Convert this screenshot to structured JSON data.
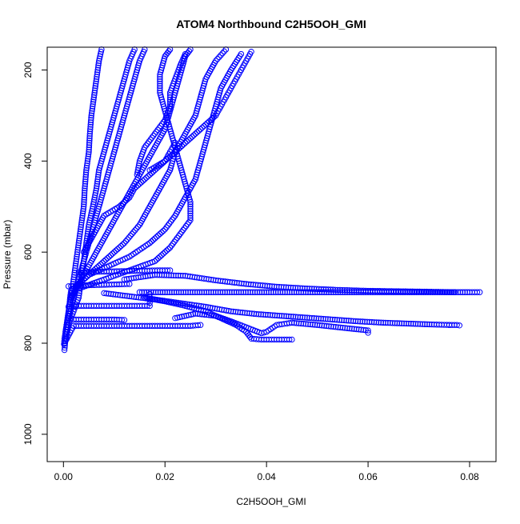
{
  "chart_data": {
    "type": "scatter",
    "title": "ATOM4 Northbound C2H5OOH_GMI",
    "xlabel": "C2H5OOH_GMI",
    "ylabel": "Pressure (mbar)",
    "xlim": [
      -0.0032,
      0.0852
    ],
    "ylim": [
      1060,
      150
    ],
    "y_reversed": true,
    "x_ticks": [
      0.0,
      0.02,
      0.04,
      0.06,
      0.08
    ],
    "x_tick_labels": [
      "0.00",
      "0.02",
      "0.04",
      "0.06",
      "0.08"
    ],
    "y_ticks": [
      200,
      400,
      600,
      800,
      1000
    ],
    "y_tick_labels": [
      "200",
      "400",
      "600",
      "800",
      "1000"
    ],
    "marker": "open-circle",
    "color": "#0000ff",
    "grid": false,
    "legend": "none",
    "series": [
      {
        "points": [
          [
            0.0002,
            815
          ],
          [
            0.0005,
            780
          ],
          [
            0.001,
            740
          ],
          [
            0.0015,
            700
          ],
          [
            0.002,
            660
          ],
          [
            0.0025,
            620
          ],
          [
            0.003,
            580
          ],
          [
            0.0035,
            540
          ],
          [
            0.004,
            500
          ],
          [
            0.0042,
            460
          ],
          [
            0.0045,
            420
          ],
          [
            0.005,
            380
          ],
          [
            0.0052,
            340
          ],
          [
            0.0055,
            300
          ],
          [
            0.006,
            260
          ],
          [
            0.0065,
            220
          ],
          [
            0.007,
            180
          ],
          [
            0.0075,
            155
          ]
        ]
      },
      {
        "points": [
          [
            0.0005,
            770
          ],
          [
            0.0012,
            740
          ],
          [
            0.002,
            700
          ],
          [
            0.003,
            660
          ],
          [
            0.004,
            620
          ],
          [
            0.005,
            580
          ],
          [
            0.006,
            540
          ],
          [
            0.007,
            500
          ],
          [
            0.008,
            460
          ],
          [
            0.009,
            420
          ],
          [
            0.01,
            380
          ],
          [
            0.011,
            340
          ],
          [
            0.012,
            300
          ],
          [
            0.013,
            260
          ],
          [
            0.014,
            220
          ],
          [
            0.015,
            180
          ],
          [
            0.016,
            155
          ]
        ]
      },
      {
        "points": [
          [
            0.001,
            720
          ],
          [
            0.002,
            690
          ],
          [
            0.004,
            650
          ],
          [
            0.006,
            610
          ],
          [
            0.008,
            570
          ],
          [
            0.01,
            530
          ],
          [
            0.012,
            490
          ],
          [
            0.014,
            450
          ],
          [
            0.016,
            410
          ],
          [
            0.018,
            370
          ],
          [
            0.02,
            330
          ],
          [
            0.021,
            290
          ],
          [
            0.022,
            250
          ],
          [
            0.023,
            210
          ],
          [
            0.024,
            170
          ],
          [
            0.025,
            155
          ]
        ]
      },
      {
        "points": [
          [
            0.0015,
            700
          ],
          [
            0.003,
            670
          ],
          [
            0.006,
            640
          ],
          [
            0.009,
            610
          ],
          [
            0.012,
            580
          ],
          [
            0.015,
            540
          ],
          [
            0.017,
            500
          ],
          [
            0.019,
            460
          ],
          [
            0.021,
            420
          ],
          [
            0.022,
            380
          ],
          [
            0.024,
            340
          ],
          [
            0.026,
            300
          ],
          [
            0.027,
            260
          ],
          [
            0.028,
            220
          ],
          [
            0.03,
            180
          ],
          [
            0.032,
            155
          ]
        ]
      },
      {
        "points": [
          [
            0.002,
            680
          ],
          [
            0.005,
            650
          ],
          [
            0.009,
            630
          ],
          [
            0.013,
            610
          ],
          [
            0.017,
            580
          ],
          [
            0.02,
            550
          ],
          [
            0.022,
            520
          ],
          [
            0.024,
            480
          ],
          [
            0.026,
            440
          ],
          [
            0.027,
            400
          ],
          [
            0.028,
            360
          ],
          [
            0.029,
            320
          ],
          [
            0.03,
            280
          ],
          [
            0.031,
            240
          ],
          [
            0.033,
            200
          ],
          [
            0.035,
            165
          ]
        ]
      },
      {
        "points": [
          [
            0.0005,
            790
          ],
          [
            0.001,
            760
          ],
          [
            0.002,
            730
          ],
          [
            0.003,
            700
          ],
          [
            0.0035,
            660
          ],
          [
            0.004,
            620
          ],
          [
            0.0045,
            580
          ],
          [
            0.005,
            540
          ],
          [
            0.0058,
            500
          ],
          [
            0.0065,
            460
          ],
          [
            0.007,
            420
          ],
          [
            0.008,
            380
          ],
          [
            0.009,
            340
          ],
          [
            0.01,
            300
          ],
          [
            0.011,
            260
          ],
          [
            0.012,
            220
          ],
          [
            0.013,
            180
          ],
          [
            0.014,
            155
          ]
        ]
      },
      {
        "points": [
          [
            0.003,
            680
          ],
          [
            0.008,
            660
          ],
          [
            0.013,
            640
          ],
          [
            0.018,
            620
          ],
          [
            0.021,
            590
          ],
          [
            0.023,
            560
          ],
          [
            0.025,
            530
          ],
          [
            0.025,
            490
          ],
          [
            0.024,
            450
          ],
          [
            0.023,
            410
          ],
          [
            0.022,
            370
          ],
          [
            0.021,
            330
          ],
          [
            0.02,
            290
          ],
          [
            0.019,
            250
          ],
          [
            0.019,
            210
          ],
          [
            0.02,
            170
          ],
          [
            0.021,
            155
          ]
        ]
      },
      {
        "points": [
          [
            0.0002,
            800
          ],
          [
            0.002,
            762
          ],
          [
            0.005,
            762
          ],
          [
            0.009,
            762
          ],
          [
            0.013,
            762
          ],
          [
            0.017,
            762
          ],
          [
            0.021,
            762
          ],
          [
            0.025,
            762
          ],
          [
            0.027,
            760
          ]
        ]
      },
      {
        "points": [
          [
            0.002,
            748
          ],
          [
            0.004,
            748
          ],
          [
            0.006,
            748
          ],
          [
            0.008,
            748
          ],
          [
            0.01,
            748
          ],
          [
            0.012,
            749
          ]
        ]
      },
      {
        "points": [
          [
            0.002,
            718
          ],
          [
            0.006,
            718
          ],
          [
            0.01,
            718
          ],
          [
            0.014,
            718
          ],
          [
            0.017,
            718
          ],
          [
            0.017,
            705
          ],
          [
            0.017,
            692
          ]
        ]
      },
      {
        "points": [
          [
            0.001,
            675
          ],
          [
            0.004,
            673
          ],
          [
            0.007,
            672
          ],
          [
            0.01,
            671
          ],
          [
            0.013,
            670
          ]
        ]
      },
      {
        "points": [
          [
            0.003,
            645
          ],
          [
            0.007,
            643
          ],
          [
            0.011,
            642
          ],
          [
            0.015,
            641
          ],
          [
            0.019,
            640
          ],
          [
            0.021,
            640
          ]
        ]
      },
      {
        "points": [
          [
            0.015,
            688
          ],
          [
            0.02,
            688
          ],
          [
            0.025,
            688
          ],
          [
            0.03,
            688
          ],
          [
            0.035,
            688
          ],
          [
            0.04,
            688
          ],
          [
            0.045,
            688
          ],
          [
            0.05,
            688
          ],
          [
            0.055,
            688
          ],
          [
            0.06,
            688
          ],
          [
            0.065,
            688
          ],
          [
            0.07,
            688
          ],
          [
            0.075,
            688
          ],
          [
            0.08,
            688
          ],
          [
            0.082,
            688
          ]
        ]
      },
      {
        "points": [
          [
            0.012,
            660
          ],
          [
            0.018,
            650
          ],
          [
            0.024,
            652
          ],
          [
            0.03,
            662
          ],
          [
            0.036,
            670
          ],
          [
            0.042,
            676
          ],
          [
            0.048,
            680
          ],
          [
            0.054,
            683
          ],
          [
            0.06,
            685
          ],
          [
            0.066,
            686
          ],
          [
            0.072,
            687
          ],
          [
            0.077,
            688
          ]
        ]
      },
      {
        "points": [
          [
            0.008,
            690
          ],
          [
            0.013,
            697
          ],
          [
            0.018,
            704
          ],
          [
            0.023,
            712
          ],
          [
            0.028,
            720
          ],
          [
            0.033,
            730
          ],
          [
            0.038,
            736
          ],
          [
            0.043,
            740
          ],
          [
            0.048,
            744
          ],
          [
            0.053,
            748
          ],
          [
            0.058,
            752
          ],
          [
            0.063,
            755
          ],
          [
            0.068,
            757
          ],
          [
            0.073,
            759
          ],
          [
            0.076,
            760
          ]
        ]
      },
      {
        "points": [
          [
            0.076,
            760
          ],
          [
            0.0765,
            760
          ],
          [
            0.077,
            760
          ],
          [
            0.0775,
            760
          ],
          [
            0.078,
            761
          ]
        ]
      },
      {
        "points": [
          [
            0.022,
            745
          ],
          [
            0.026,
            735
          ],
          [
            0.03,
            740
          ],
          [
            0.033,
            752
          ],
          [
            0.036,
            765
          ],
          [
            0.039,
            778
          ],
          [
            0.04,
            775
          ],
          [
            0.042,
            760
          ],
          [
            0.045,
            755
          ],
          [
            0.05,
            760
          ],
          [
            0.055,
            766
          ],
          [
            0.06,
            772
          ],
          [
            0.06,
            777
          ]
        ]
      },
      {
        "points": [
          [
            0.016,
            700
          ],
          [
            0.02,
            708
          ],
          [
            0.024,
            718
          ],
          [
            0.028,
            730
          ],
          [
            0.031,
            745
          ],
          [
            0.034,
            760
          ],
          [
            0.036,
            775
          ],
          [
            0.037,
            790
          ],
          [
            0.039,
            792
          ],
          [
            0.041,
            792
          ],
          [
            0.043,
            792
          ],
          [
            0.045,
            792
          ]
        ]
      },
      {
        "points": [
          [
            0.0001,
            802
          ],
          [
            0.0002,
            790
          ],
          [
            0.0004,
            775
          ],
          [
            0.0006,
            760
          ],
          [
            0.0008,
            745
          ],
          [
            0.001,
            730
          ],
          [
            0.0012,
            715
          ],
          [
            0.0013,
            700
          ],
          [
            0.0015,
            685
          ]
        ]
      },
      {
        "points": [
          [
            0.017,
            420
          ],
          [
            0.02,
            400
          ],
          [
            0.022,
            380
          ],
          [
            0.024,
            360
          ],
          [
            0.026,
            340
          ],
          [
            0.028,
            320
          ],
          [
            0.03,
            300
          ],
          [
            0.031,
            280
          ],
          [
            0.032,
            260
          ],
          [
            0.033,
            240
          ],
          [
            0.034,
            220
          ],
          [
            0.035,
            200
          ],
          [
            0.036,
            180
          ],
          [
            0.037,
            160
          ]
        ]
      },
      {
        "points": [
          [
            0.0145,
            430
          ],
          [
            0.015,
            400
          ],
          [
            0.016,
            370
          ],
          [
            0.018,
            340
          ],
          [
            0.02,
            310
          ],
          [
            0.021,
            280
          ],
          [
            0.021,
            250
          ],
          [
            0.022,
            220
          ],
          [
            0.023,
            190
          ],
          [
            0.024,
            165
          ]
        ]
      },
      {
        "points": [
          [
            0.004,
            600
          ],
          [
            0.006,
            560
          ],
          [
            0.008,
            520
          ],
          [
            0.011,
            500
          ],
          [
            0.013,
            480
          ],
          [
            0.014,
            460
          ],
          [
            0.016,
            440
          ],
          [
            0.018,
            420
          ],
          [
            0.02,
            400
          ],
          [
            0.021,
            380
          ],
          [
            0.022,
            360
          ]
        ]
      }
    ]
  }
}
